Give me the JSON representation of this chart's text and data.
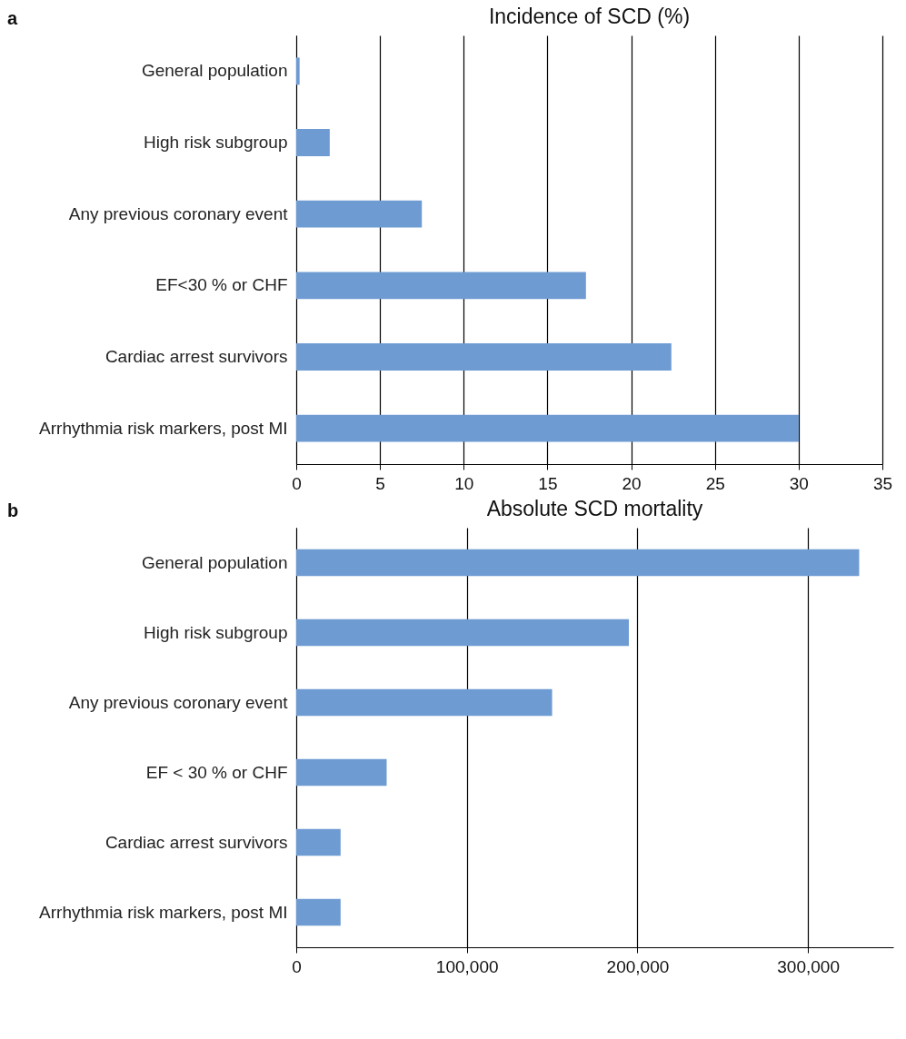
{
  "chart_data": [
    {
      "type": "bar",
      "orientation": "horizontal",
      "title": "Incidence of SCD (%)",
      "annotations": [
        "a"
      ],
      "categories": [
        "General population",
        "High risk subgroup",
        "Any previous coronary event",
        "EF<30 % or CHF",
        "Cardiac arrest survivors",
        "Arrhythmia risk markers, post MI"
      ],
      "values": [
        0.2,
        2,
        7.5,
        17.3,
        22.4,
        30
      ],
      "color": "#6f9bd3",
      "xlim": [
        0,
        35
      ],
      "xticks": [
        0,
        5,
        10,
        15,
        20,
        25,
        30,
        35
      ],
      "grid": "x"
    },
    {
      "type": "bar",
      "orientation": "horizontal",
      "title": "Absolute SCD mortality",
      "annotations": [
        "b"
      ],
      "categories": [
        "General population",
        "High risk subgroup",
        "Any previous coronary event",
        "EF < 30 % or CHF",
        "Cardiac arrest survivors",
        "Arrhythmia risk markers, post MI"
      ],
      "values": [
        330000,
        195000,
        150000,
        53000,
        26000,
        26000
      ],
      "color": "#6f9bd3",
      "xlim": [
        0,
        350000
      ],
      "xticks": [
        0,
        {
          "value": 100000,
          "label": "100,000"
        },
        {
          "value": 200000,
          "label": "200,000"
        },
        {
          "value": 300000,
          "label": "300,000"
        }
      ],
      "grid": "x"
    }
  ]
}
